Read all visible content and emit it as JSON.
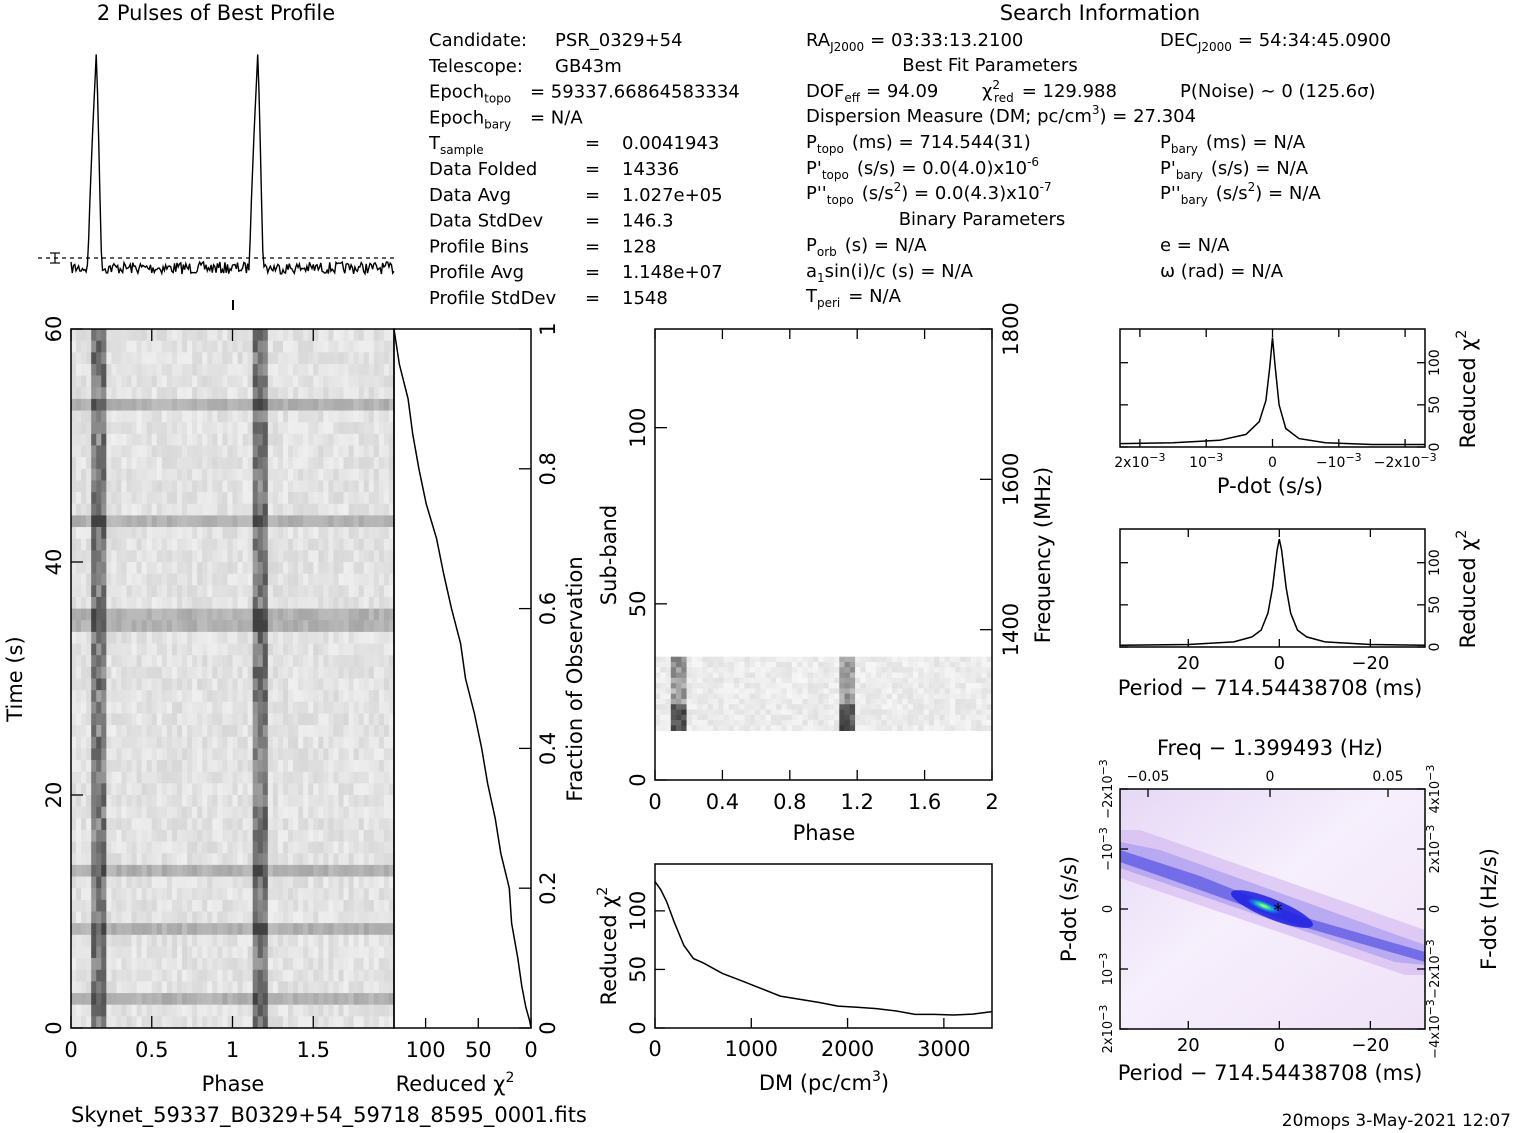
{
  "header": {
    "profile_title": "2 Pulses of Best Profile",
    "search_title": "Search Information",
    "best_fit_title": "Best Fit Parameters",
    "binary_title": "Binary Parameters",
    "filename": "Skynet_59337_B0329+54_59718_8595_0001.fits",
    "footer_right": "20mops  3-May-2021 12:07"
  },
  "info_left": [
    {
      "label": "Candidate:",
      "value": "PSR_0329+54"
    },
    {
      "label": "Telescope:",
      "value": "GB43m"
    },
    {
      "label": "Epoch",
      "sub": "topo",
      "value": "= 59337.66864583334"
    },
    {
      "label": "Epoch",
      "sub": "bary",
      "value": "= N/A"
    },
    {
      "label": "T",
      "sub": "sample",
      "value": "0.0041943"
    },
    {
      "label": "Data Folded",
      "value": "14336"
    },
    {
      "label": "Data Avg",
      "value": "1.027e+05"
    },
    {
      "label": "Data StdDev",
      "value": "146.3"
    },
    {
      "label": "Profile Bins",
      "value": "128"
    },
    {
      "label": "Profile Avg",
      "value": "1.148e+07"
    },
    {
      "label": "Profile StdDev",
      "value": "1548"
    }
  ],
  "info_mid": {
    "ra": "RA",
    "ra_sub": "J2000",
    "ra_value": "= 03:33:13.2100",
    "dec": "DEC",
    "dec_sub": "J2000",
    "dec_value": "= 54:34:45.0900",
    "dof": "DOF",
    "dof_sub": "eff",
    "dof_value": "= 94.09",
    "chi2": "χ",
    "chi2_sub": "red",
    "chi2_value": "= 129.988",
    "pnoise": "P(Noise) ~ 0    (125.6σ)",
    "dm_line": "Dispersion Measure (DM; pc/cm",
    "dm_value": ") = 27.304",
    "ptopo": "P",
    "ptopo_sub": "topo",
    "ptopo_value": "(ms) =  714.544(31)",
    "pdtopo_value": "(s/s) = 0.0(4.0)x10",
    "pdtopo_exp": "-6",
    "pddtopo_value": "(s/s",
    "pddtopo_rest": ") = 0.0(4.3)x10",
    "pddtopo_exp": "-7",
    "pbary": "(ms) = N/A",
    "pdbary": "(s/s) = N/A",
    "pddbary": ") = N/A",
    "porb": "(s) = N/A",
    "asini": "sin(i)/c (s) = N/A",
    "tperi": "= N/A",
    "ecc": "e = N/A",
    "omega": "ω (rad) = N/A"
  },
  "chart_data": [
    {
      "id": "pulse_profile",
      "type": "line",
      "title": "2 Pulses of Best Profile",
      "x_range": [
        0,
        2
      ],
      "peaks": [
        0.16,
        1.16
      ],
      "note": "two sharp pulses over a flat noisy baseline"
    },
    {
      "id": "time_phase",
      "type": "heatmap",
      "xlabel": "Phase",
      "ylabel": "Time (s)",
      "x_ticks": [
        "0",
        "0.5",
        "1",
        "1.5"
      ],
      "x_tick_values": [
        0,
        0.5,
        1,
        1.5
      ],
      "y_ticks": [
        "0",
        "20",
        "40",
        "60"
      ],
      "y_tick_values": [
        0,
        20,
        40,
        60
      ],
      "xlim": [
        0,
        2
      ],
      "ylim": [
        0,
        60
      ],
      "pulse_phases": [
        0.16,
        1.16
      ]
    },
    {
      "id": "reduced_chi2_vs_fraction",
      "type": "line",
      "xlabel": "Reduced χ",
      "ylabel": "Fraction of Observation",
      "x_ticks": [
        "100",
        "50",
        "0"
      ],
      "x_tick_values": [
        100,
        50,
        0
      ],
      "xlim": [
        130,
        0
      ],
      "y_ticks": [
        "0",
        "0.2",
        "0.4",
        "0.6",
        "0.8",
        "1"
      ],
      "y_tick_values": [
        0,
        0.2,
        0.4,
        0.6,
        0.8,
        1
      ],
      "points": [
        [
          0,
          0
        ],
        [
          2,
          0.01
        ],
        [
          6,
          0.03
        ],
        [
          9,
          0.06
        ],
        [
          13,
          0.1
        ],
        [
          18,
          0.15
        ],
        [
          22,
          0.2
        ],
        [
          28,
          0.25
        ],
        [
          34,
          0.3
        ],
        [
          40,
          0.35
        ],
        [
          47,
          0.4
        ],
        [
          54,
          0.45
        ],
        [
          61,
          0.5
        ],
        [
          68,
          0.55
        ],
        [
          75,
          0.6
        ],
        [
          82,
          0.65
        ],
        [
          90,
          0.7
        ],
        [
          98,
          0.75
        ],
        [
          105,
          0.8
        ],
        [
          112,
          0.85
        ],
        [
          118,
          0.9
        ],
        [
          124,
          0.95
        ],
        [
          130,
          1.0
        ]
      ]
    },
    {
      "id": "subband_phase",
      "type": "heatmap",
      "xlabel": "Phase",
      "ylabel": "Sub-band",
      "y2label": "Frequency (MHz)",
      "x_ticks": [
        "0",
        "0.4",
        "0.8",
        "1.2",
        "1.6",
        "2"
      ],
      "x_tick_values": [
        0,
        0.4,
        0.8,
        1.2,
        1.6,
        2
      ],
      "y_ticks": [
        "0",
        "50",
        "100"
      ],
      "y_tick_values": [
        0,
        50,
        100
      ],
      "y2_ticks": [
        "1400",
        "1600",
        "1800"
      ],
      "y2_tick_values": [
        1400,
        1600,
        1800
      ],
      "ylim": [
        0,
        128
      ],
      "y2lim": [
        1200,
        1800
      ],
      "data_subbands": [
        14,
        35
      ]
    },
    {
      "id": "dm_curve",
      "type": "line",
      "xlabel": "DM (pc/cm",
      "xlabel_exp": "3",
      "xlabel_end": ")",
      "ylabel": "Reduced χ",
      "x_ticks": [
        "0",
        "1000",
        "2000",
        "3000"
      ],
      "x_tick_values": [
        0,
        1000,
        2000,
        3000
      ],
      "y_ticks": [
        "0",
        "50",
        "100"
      ],
      "y_tick_values": [
        0,
        50,
        100
      ],
      "xlim": [
        0,
        3500
      ],
      "ylim": [
        0,
        140
      ],
      "points": [
        [
          0,
          125
        ],
        [
          60,
          118
        ],
        [
          120,
          108
        ],
        [
          200,
          90
        ],
        [
          300,
          70
        ],
        [
          400,
          60
        ],
        [
          500,
          55
        ],
        [
          700,
          47
        ],
        [
          900,
          40
        ],
        [
          1100,
          34
        ],
        [
          1300,
          28
        ],
        [
          1500,
          24
        ],
        [
          1700,
          21
        ],
        [
          1900,
          19
        ],
        [
          2100,
          18
        ],
        [
          2300,
          16
        ],
        [
          2500,
          14
        ],
        [
          2700,
          12
        ],
        [
          2900,
          11
        ],
        [
          3100,
          11
        ],
        [
          3300,
          12
        ],
        [
          3500,
          14
        ]
      ]
    },
    {
      "id": "pdot_curve",
      "type": "line",
      "xlabel": "P-dot (s/s)",
      "ylabel": "Reduced χ",
      "x_ticks": [
        "2x10",
        "10",
        "0",
        "−10",
        "−2x10"
      ],
      "x_tick_exps": [
        "−3",
        "−3",
        "",
        "−3",
        "−3"
      ],
      "x_tick_values": [
        0.002,
        0.001,
        0,
        -0.001,
        -0.002
      ],
      "xlim": [
        0.0023,
        -0.0023
      ],
      "y_ticks": [
        "0",
        "50",
        "100"
      ],
      "y_tick_values": [
        0,
        50,
        100
      ],
      "ylim": [
        0,
        140
      ],
      "points": [
        [
          0.0023,
          4
        ],
        [
          0.0015,
          5
        ],
        [
          0.0008,
          8
        ],
        [
          0.0004,
          15
        ],
        [
          0.0002,
          30
        ],
        [
          0.0001,
          55
        ],
        [
          4e-05,
          95
        ],
        [
          0,
          130
        ],
        [
          -4e-05,
          95
        ],
        [
          -0.0001,
          50
        ],
        [
          -0.0002,
          22
        ],
        [
          -0.0004,
          10
        ],
        [
          -0.0008,
          5
        ],
        [
          -0.0015,
          3
        ],
        [
          -0.0023,
          3
        ]
      ]
    },
    {
      "id": "period_curve",
      "type": "line",
      "xlabel": "Period − 714.54438708 (ms)",
      "ylabel": "Reduced χ",
      "x_ticks": [
        "20",
        "0",
        "−20"
      ],
      "x_tick_values": [
        20,
        0,
        -20
      ],
      "xlim": [
        35,
        -32
      ],
      "y_ticks": [
        "0",
        "50",
        "100"
      ],
      "y_tick_values": [
        0,
        50,
        100
      ],
      "ylim": [
        0,
        140
      ],
      "points": [
        [
          35,
          2
        ],
        [
          20,
          3
        ],
        [
          10,
          6
        ],
        [
          6,
          12
        ],
        [
          4,
          20
        ],
        [
          2.5,
          40
        ],
        [
          1.5,
          70
        ],
        [
          0.5,
          115
        ],
        [
          0,
          128
        ],
        [
          -0.5,
          115
        ],
        [
          -1.5,
          70
        ],
        [
          -2.5,
          40
        ],
        [
          -4,
          20
        ],
        [
          -6,
          12
        ],
        [
          -10,
          6
        ],
        [
          -20,
          3
        ],
        [
          -32,
          2
        ]
      ]
    },
    {
      "id": "period_pdot_plane",
      "type": "heatmap",
      "title": "Freq − 1.399493 (Hz)",
      "xlabel": "Period − 714.54438708 (ms)",
      "ylabel": "P-dot (s/s)",
      "y2label": "F-dot (Hz/s)",
      "x_ticks": [
        "20",
        "0",
        "−20"
      ],
      "x_tick_values": [
        20,
        0,
        -20
      ],
      "x2_ticks": [
        "−0.05",
        "0",
        "0.05"
      ],
      "y_ticks": [
        "2x10",
        "10",
        "0",
        "−10",
        "−2x10"
      ],
      "y_tick_exps": [
        "−3",
        "−3",
        "",
        "−3",
        "−3"
      ],
      "y2_ticks": [
        "−4x10",
        "−2x10",
        "0",
        "2x10",
        "4x10"
      ],
      "y2_tick_exps": [
        "−3",
        "−3",
        "",
        "−3",
        "−3"
      ],
      "xlim": [
        35,
        -32
      ],
      "best": [
        0,
        0
      ]
    }
  ],
  "colors": {
    "foreground": "#000000",
    "background": "#ffffff",
    "peak": "#28e6a0",
    "ridge": "#1f20e0",
    "halo": "#d8b8f0"
  }
}
